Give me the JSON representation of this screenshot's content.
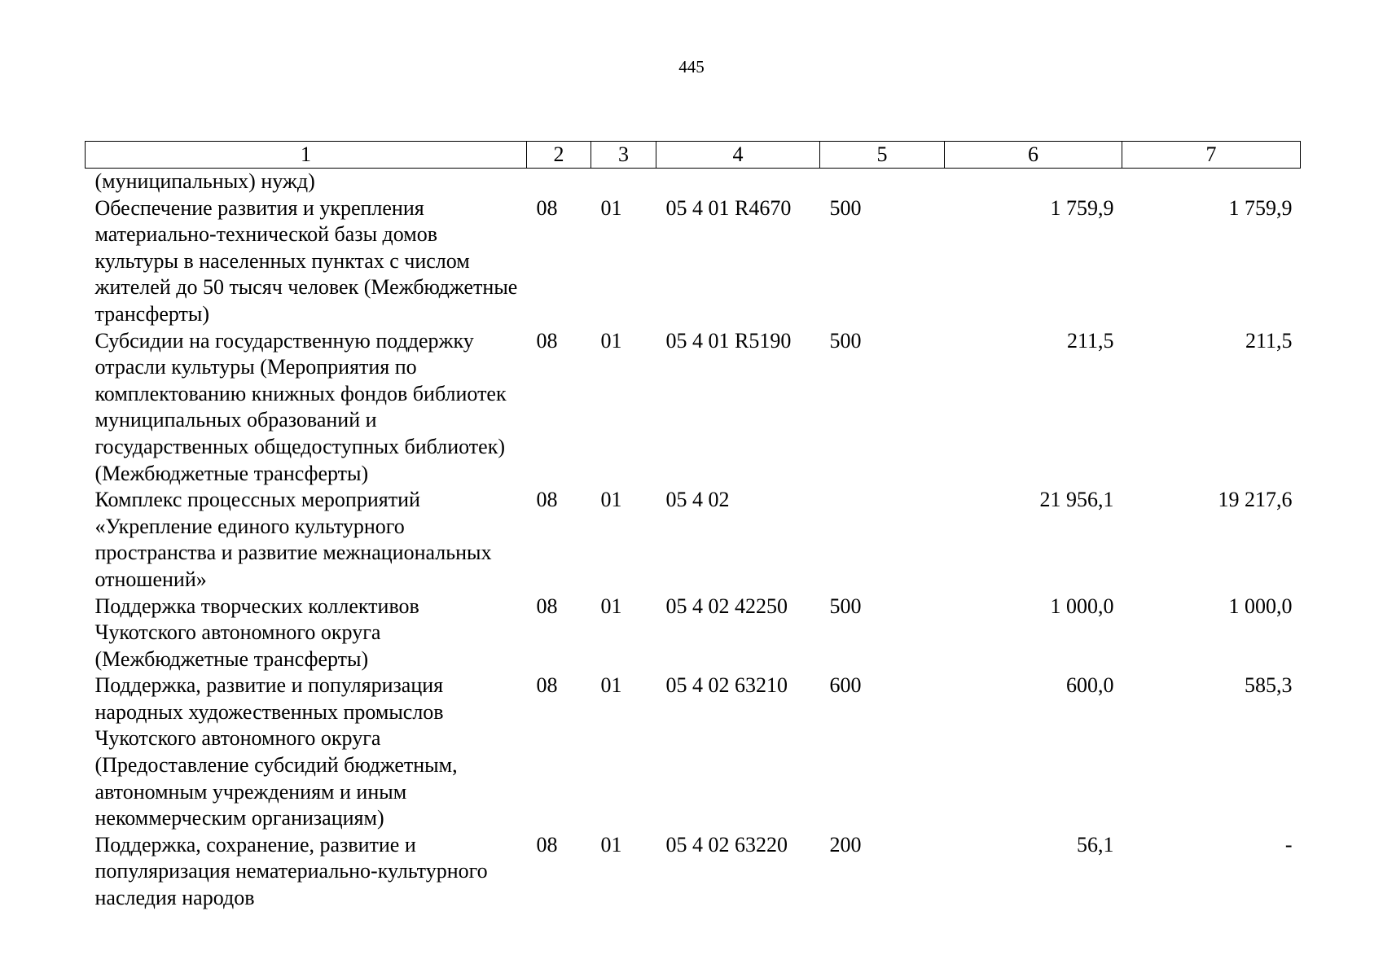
{
  "page_number": "445",
  "table": {
    "headers": [
      "1",
      "2",
      "3",
      "4",
      "5",
      "6",
      "7"
    ],
    "rows": [
      {
        "name": "(муниципальных) нужд)",
        "section": "",
        "subsection": "",
        "target": "",
        "expense_type": "",
        "sum_a": "",
        "sum_b": ""
      },
      {
        "name": "Обеспечение развития и укрепления материально-технической базы домов культуры в населенных пунктах с числом жителей до 50 тысяч человек (Межбюджетные трансферты)",
        "section": "08",
        "subsection": "01",
        "target": "05 4 01 R4670",
        "expense_type": "500",
        "sum_a": "1 759,9",
        "sum_b": "1 759,9"
      },
      {
        "name": "Субсидии на государственную поддержку отрасли культуры (Мероприятия по комплектованию книжных фондов библиотек муниципальных образований и государственных общедоступных библиотек) (Межбюджетные трансферты)",
        "section": "08",
        "subsection": "01",
        "target": "05 4 01 R5190",
        "expense_type": "500",
        "sum_a": "211,5",
        "sum_b": "211,5"
      },
      {
        "name": "Комплекс процессных мероприятий «Укрепление единого культурного пространства и развитие межнациональных отношений»",
        "section": "08",
        "subsection": "01",
        "target": "05 4 02",
        "expense_type": "",
        "sum_a": "21 956,1",
        "sum_b": "19 217,6"
      },
      {
        "name": "Поддержка творческих коллективов Чукотского автономного округа (Межбюджетные трансферты)",
        "section": "08",
        "subsection": "01",
        "target": "05 4 02 42250",
        "expense_type": "500",
        "sum_a": "1 000,0",
        "sum_b": "1 000,0"
      },
      {
        "name": "Поддержка, развитие и популяризация народных художественных промыслов Чукотского автономного округа (Предоставление субсидий бюджетным, автономным учреждениям и иным некоммерческим организациям)",
        "section": "08",
        "subsection": "01",
        "target": "05 4 02 63210",
        "expense_type": "600",
        "sum_a": "600,0",
        "sum_b": "585,3"
      },
      {
        "name": "Поддержка, сохранение, развитие и популяризация нематериально-культурного наследия народов",
        "section": "08",
        "subsection": "01",
        "target": "05 4 02 63220",
        "expense_type": "200",
        "sum_a": "56,1",
        "sum_b": "-"
      }
    ]
  }
}
